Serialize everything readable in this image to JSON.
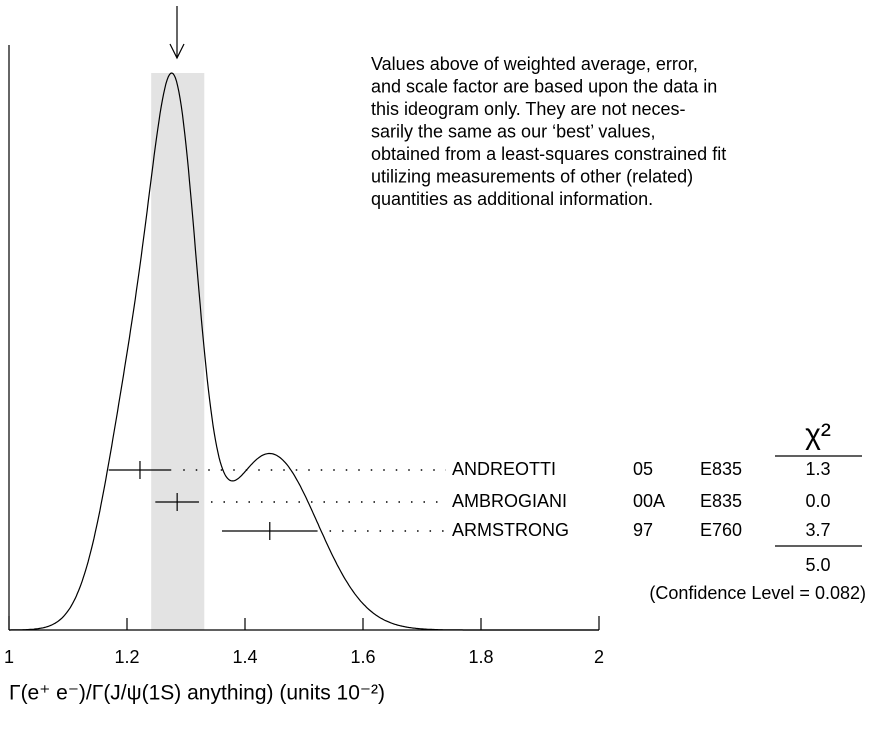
{
  "chart_data": {
    "type": "ideogram",
    "xlim": [
      1,
      2
    ],
    "xticks": [
      1,
      1.2,
      1.4,
      1.6,
      1.8,
      2
    ],
    "x_label": "Γ(e⁺ e⁻)/Γ(J/ψ(1S) anything)  (units 10⁻²)",
    "weighted_average": {
      "value": 1.286,
      "error": 0.045,
      "color": "#e3e3e3"
    },
    "note": [
      "Values above of weighted average, error,",
      "and scale factor are based upon the data in",
      "this ideogram only.  They are not neces-",
      "sarily the same as our ‘best’ values,",
      "obtained from a least-squares constrained fit",
      "utilizing measurements of other (related)",
      "quantities as additional information."
    ],
    "measurements": {
      "names": [
        "ANDREOTTI",
        "AMBROGIANI",
        "ARMSTRONG"
      ],
      "years": [
        "05",
        "00A",
        "97"
      ],
      "experiments": [
        "E835",
        "E835",
        "E760"
      ],
      "values": [
        1.222,
        1.285,
        1.442
      ],
      "errors": [
        0.053,
        0.037,
        0.081
      ]
    },
    "chi2": {
      "header": "χ²",
      "values": [
        1.3,
        0,
        3.7
      ],
      "value_labels": [
        "1.3",
        "0.0",
        "3.7"
      ],
      "total": {
        "value": 5,
        "label": "5.0"
      },
      "confidence": "(Confidence Level = 0.082)"
    }
  }
}
